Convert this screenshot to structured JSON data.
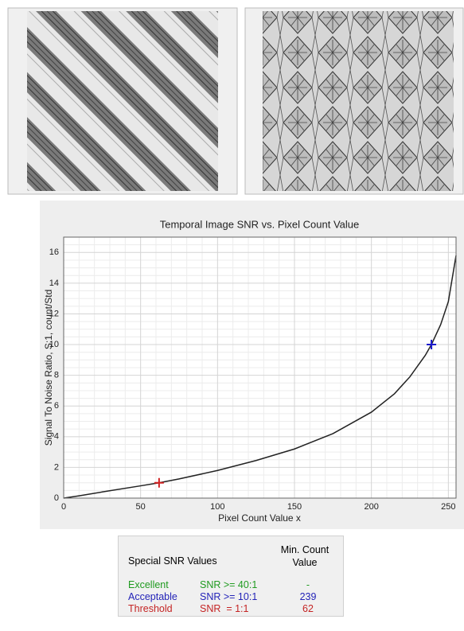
{
  "chart_data": {
    "type": "line",
    "title": "Temporal Image SNR vs. Pixel Count Value",
    "x_label": "Pixel Count Value x",
    "y_label": "Signal To Noise Ratio, S:1, count/Std",
    "x": [
      0,
      10,
      25,
      50,
      62,
      75,
      100,
      125,
      150,
      175,
      200,
      215,
      225,
      235,
      239,
      245,
      250,
      255
    ],
    "values": [
      0,
      0.15,
      0.4,
      0.8,
      1,
      1.25,
      1.8,
      2.45,
      3.2,
      4.2,
      5.6,
      6.8,
      7.9,
      9.3,
      10,
      11.3,
      12.8,
      15.8
    ],
    "color": "#222222",
    "markers": {
      "x": [
        62,
        239
      ],
      "values": [
        1,
        10
      ],
      "colors": [
        "#d02020",
        "#1a1acc"
      ]
    },
    "xlim": [
      0,
      255
    ],
    "ylim": [
      0,
      17
    ],
    "xticks": [
      0,
      50,
      100,
      150,
      200,
      250
    ],
    "yticks": [
      0,
      2,
      4,
      6,
      8,
      10,
      12,
      14,
      16
    ],
    "grid": true
  },
  "table": {
    "header": [
      "Special SNR Values",
      "Min. Count Value"
    ],
    "rows": [
      [
        "Excellent",
        "SNR >= 40:1",
        "-"
      ],
      [
        "Acceptable",
        "SNR >= 10:1",
        "239"
      ],
      [
        "Threshold",
        "SNR  = 1:1",
        "62"
      ]
    ],
    "colors": [
      "#1f9a1f",
      "#2323b8",
      "#c42424"
    ]
  }
}
